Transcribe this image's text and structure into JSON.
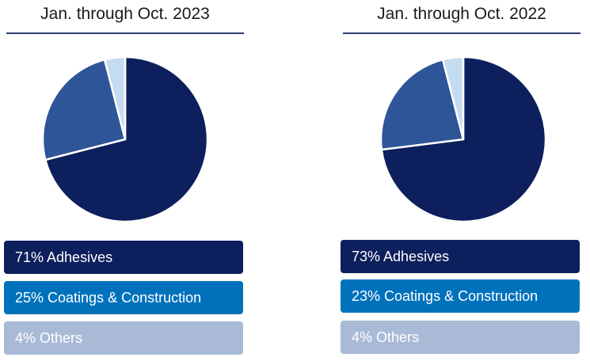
{
  "colors": {
    "adhesives": "#0d1f5c",
    "coatings_construction": "#2e5597",
    "others": "#c5dbf0",
    "legend_adhesives": "#0d1f5c",
    "legend_coatings_construction": "#0072bc",
    "legend_others": "#a9bad6"
  },
  "chart_data": [
    {
      "type": "pie",
      "title": "Jan. through Oct. 2023",
      "categories": [
        "Adhesives",
        "Coatings & Construction",
        "Others"
      ],
      "values": [
        71,
        25,
        4
      ],
      "legend": [
        "71% Adhesives",
        "25% Coatings & Construction",
        "4% Others"
      ],
      "legend_placement": "bottom"
    },
    {
      "type": "pie",
      "title": "Jan. through Oct. 2022",
      "categories": [
        "Adhesives",
        "Coatings & Construction",
        "Others"
      ],
      "values": [
        73,
        23,
        4
      ],
      "legend": [
        "73% Adhesives",
        "23% Coatings & Construction",
        "4% Others"
      ],
      "legend_placement": "bottom"
    }
  ]
}
